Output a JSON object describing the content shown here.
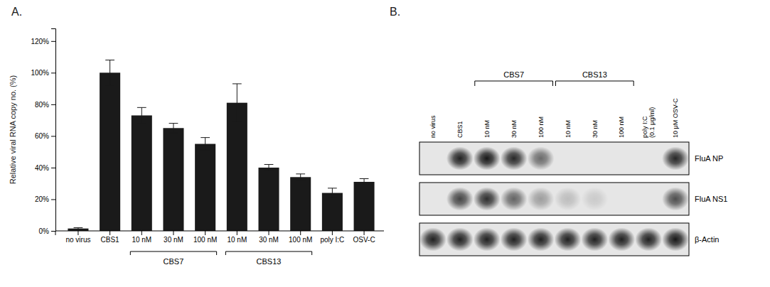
{
  "chart_data": [
    {
      "type": "bar",
      "title": "A.",
      "categories": [
        "no virus",
        "CBS1",
        "10 nM",
        "30 nM",
        "100 nM",
        "10 nM",
        "30 nM",
        "100 nM",
        "poly I:C",
        "OSV-C"
      ],
      "values": [
        1.5,
        100,
        73,
        65,
        55,
        81,
        40,
        34,
        24,
        31
      ],
      "errors": [
        0.5,
        8,
        5,
        3,
        4,
        12,
        2,
        2,
        3,
        2
      ],
      "color": "#1a1a1a",
      "y_label": "Relative viral RNA copy no. (%)",
      "ylim": [
        0,
        128
      ],
      "yticks": [
        {
          "value": 0,
          "label": "0%"
        },
        {
          "value": 20,
          "label": "20%"
        },
        {
          "value": 40,
          "label": "40%"
        },
        {
          "value": 60,
          "label": "60%"
        },
        {
          "value": 80,
          "label": "80%"
        },
        {
          "value": 100,
          "label": "100%"
        },
        {
          "value": 120,
          "label": "120%"
        }
      ],
      "grid": false,
      "annotations": [
        {
          "text": "CBS7",
          "start": 2,
          "end": 4
        },
        {
          "text": "CBS13",
          "start": 5,
          "end": 7
        }
      ]
    },
    {
      "type": "blot",
      "title": "B.",
      "categories": [
        "no virus",
        "CBS1",
        "10 nM",
        "30 nM",
        "100 nM",
        "10 nM",
        "30 nM",
        "100 nM",
        "poly I:C\n(0.1 μg/ml)",
        "10 μM OSV-C"
      ],
      "series": [
        {
          "name": "FluA NP",
          "values": [
            null,
            0.88,
            0.92,
            0.85,
            0.55,
            null,
            null,
            null,
            null,
            0.85
          ]
        },
        {
          "name": "FluA NS1",
          "values": [
            null,
            0.72,
            0.82,
            0.58,
            0.32,
            0.18,
            0.12,
            null,
            null,
            0.68
          ]
        },
        {
          "name": "β-Actin",
          "values": [
            0.88,
            0.88,
            0.88,
            0.88,
            0.88,
            0.88,
            0.88,
            0.88,
            0.88,
            0.92
          ]
        }
      ],
      "annotations": [
        {
          "text": "CBS7",
          "start": 2,
          "end": 4
        },
        {
          "text": "CBS13",
          "start": 5,
          "end": 7
        }
      ]
    }
  ]
}
